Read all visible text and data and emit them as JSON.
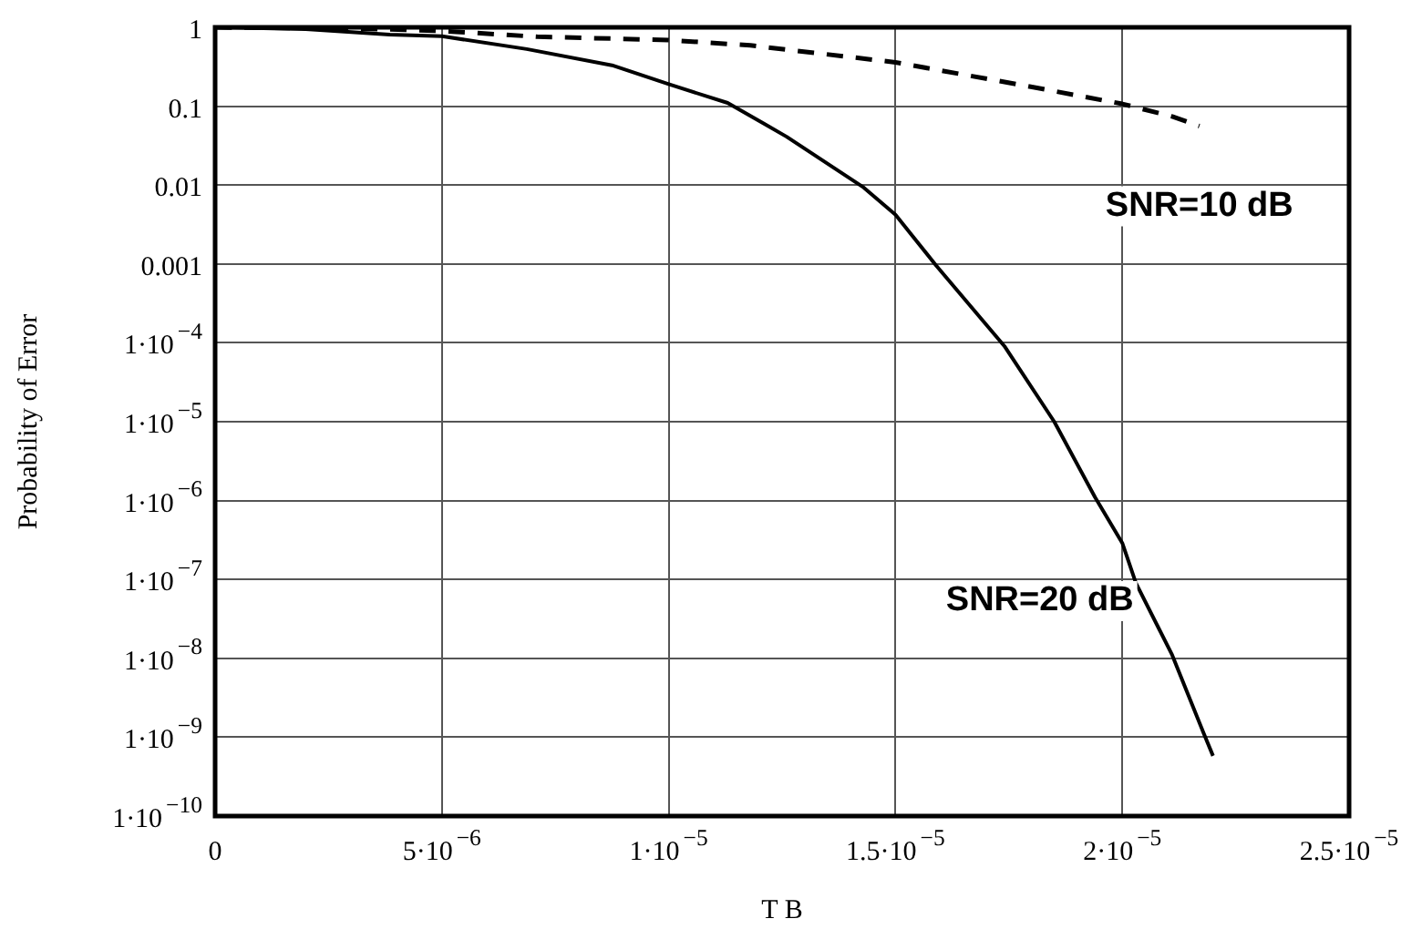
{
  "chart_data": {
    "type": "line",
    "xlabel": "T B",
    "ylabel": "Probability of Error",
    "log": "y",
    "grid": true,
    "legend": false,
    "xlim": [
      0,
      2.5e-05
    ],
    "ylim": [
      1e-10,
      1
    ],
    "xticks": [
      0,
      {
        "value": 5e-06,
        "label": "5·10$^{−6}$"
      },
      {
        "value": 1e-05,
        "label": "1·10$^{−5}$"
      },
      {
        "value": 1.5e-05,
        "label": "1.5·10$^{−5}$"
      },
      {
        "value": 2e-05,
        "label": "2·10$^{−5}$"
      },
      {
        "value": 2.5e-05,
        "label": "2.5·10$^{−5}$"
      }
    ],
    "yticks": [
      {
        "value": 1e-10,
        "label": "1·10$^{−10}$"
      },
      {
        "value": 1e-09,
        "label": "1·10$^{−9}$"
      },
      {
        "value": 1e-08,
        "label": "1·10$^{−8}$"
      },
      {
        "value": 1e-07,
        "label": "1·10$^{−7}$"
      },
      {
        "value": 1e-06,
        "label": "1·10$^{−6}$"
      },
      {
        "value": 1e-05,
        "label": "1·10$^{−5}$"
      },
      {
        "value": 0.0001,
        "label": "1·10$^{−4}$"
      },
      0.001,
      0.01,
      0.1,
      1
    ],
    "series": [
      {
        "name": "SNR=10 dB",
        "color": "#000000",
        "line_style": "dashed",
        "x": [
          0,
          3e-06,
          5e-06,
          7.1e-06,
          1e-05,
          1.18e-05,
          1.5e-05,
          1.79e-05,
          2e-05,
          2.11e-05,
          2.17e-05
        ],
        "values": [
          1,
          0.97,
          0.9,
          0.76,
          0.69,
          0.59,
          0.36,
          0.18,
          0.107,
          0.074,
          0.056
        ]
      },
      {
        "name": "SNR=20 dB",
        "color": "#000000",
        "line_style": "solid",
        "x": [
          0,
          2e-06,
          3.85e-06,
          5e-06,
          6.87e-06,
          8.75e-06,
          1e-05,
          1.13e-05,
          1.21e-05,
          1.26e-05,
          1.43e-05,
          1.5e-05,
          1.59e-05,
          1.74e-05,
          1.85e-05,
          1.94e-05,
          2e-05,
          2.03e-05,
          2.11e-05,
          2.18e-05,
          2.2e-05
        ],
        "values": [
          1,
          0.95,
          0.81,
          0.77,
          0.53,
          0.33,
          0.19,
          0.11,
          0.06,
          0.041,
          0.0093,
          0.0042,
          0.00095,
          9.1e-05,
          1e-05,
          1.1e-06,
          2.9e-07,
          9e-08,
          1.1e-08,
          1.1e-09,
          5.8e-10
        ]
      }
    ]
  }
}
